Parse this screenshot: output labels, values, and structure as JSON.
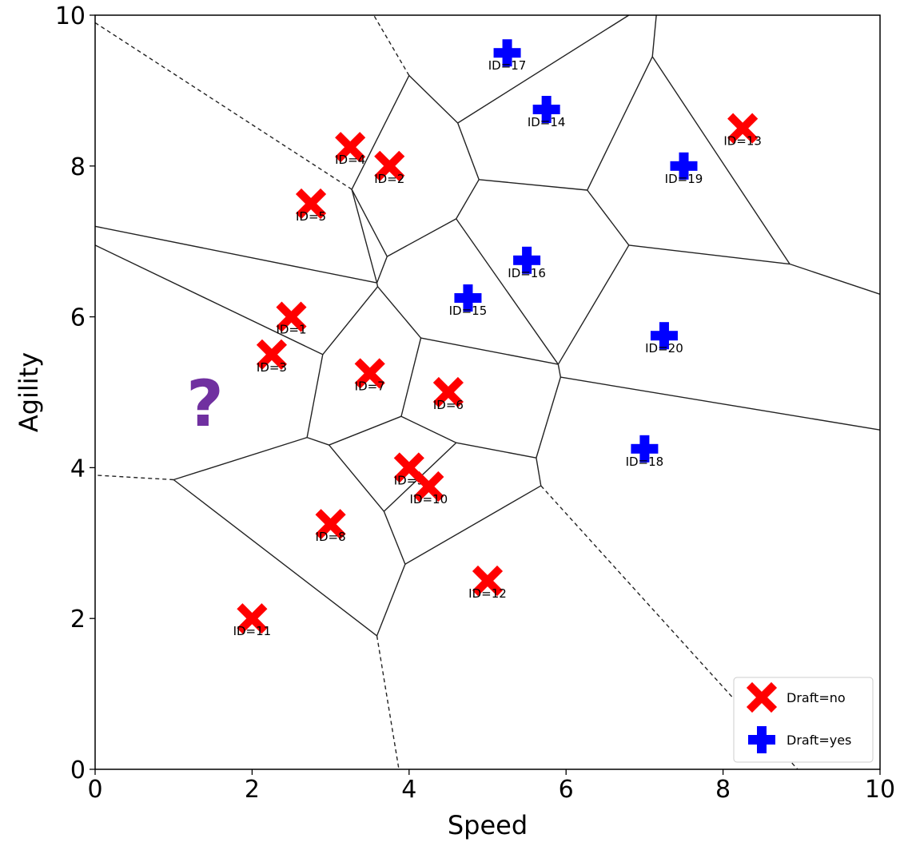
{
  "chart_data": {
    "type": "scatter",
    "xlabel": "Speed",
    "ylabel": "Agility",
    "xlim": [
      0,
      10
    ],
    "ylim": [
      0,
      10
    ],
    "xticks": [
      "0",
      "2",
      "4",
      "6",
      "8",
      "10"
    ],
    "yticks": [
      "0",
      "2",
      "4",
      "6",
      "8",
      "10"
    ],
    "grid": false,
    "legend_position": "bottom-right",
    "query_point": {
      "label": "?",
      "x": 1.4,
      "y": 4.85,
      "color": "#7030A0"
    },
    "series": [
      {
        "name": "Draft=no",
        "marker": "x",
        "color": "#FF0000",
        "points": [
          {
            "id": "ID=1",
            "x": 2.5,
            "y": 6.0
          },
          {
            "id": "ID=2",
            "x": 3.75,
            "y": 8.0
          },
          {
            "id": "ID=3",
            "x": 2.25,
            "y": 5.5
          },
          {
            "id": "ID=4",
            "x": 3.25,
            "y": 8.25
          },
          {
            "id": "ID=5",
            "x": 2.75,
            "y": 7.5
          },
          {
            "id": "ID=6",
            "x": 4.5,
            "y": 5.0
          },
          {
            "id": "ID=7",
            "x": 3.5,
            "y": 5.25
          },
          {
            "id": "ID=8",
            "x": 3.0,
            "y": 3.25
          },
          {
            "id": "ID=9",
            "x": 4.0,
            "y": 4.0
          },
          {
            "id": "ID=10",
            "x": 4.25,
            "y": 3.75
          },
          {
            "id": "ID=11",
            "x": 2.0,
            "y": 2.0
          },
          {
            "id": "ID=12",
            "x": 5.0,
            "y": 2.5
          },
          {
            "id": "ID=13",
            "x": 8.25,
            "y": 8.5
          }
        ]
      },
      {
        "name": "Draft=yes",
        "marker": "plus",
        "color": "#0000FF",
        "points": [
          {
            "id": "ID=14",
            "x": 5.75,
            "y": 8.75
          },
          {
            "id": "ID=15",
            "x": 4.75,
            "y": 6.25
          },
          {
            "id": "ID=16",
            "x": 5.5,
            "y": 6.75
          },
          {
            "id": "ID=17",
            "x": 5.25,
            "y": 9.5
          },
          {
            "id": "ID=18",
            "x": 7.0,
            "y": 4.25
          },
          {
            "id": "ID=19",
            "x": 7.5,
            "y": 8.0
          },
          {
            "id": "ID=20",
            "x": 7.25,
            "y": 5.75
          }
        ]
      }
    ],
    "voronoi_edges": [
      {
        "p": [
          [
            3.27,
            7.69
          ],
          [
            3.59,
            6.45
          ]
        ],
        "dashed": false
      },
      {
        "p": [
          [
            3.27,
            7.69
          ],
          [
            4.0,
            9.2
          ]
        ],
        "dashed": false
      },
      {
        "p": [
          [
            3.27,
            7.69
          ],
          [
            0.0,
            9.9
          ]
        ],
        "dashed": true
      },
      {
        "p": [
          [
            4.0,
            9.2
          ],
          [
            3.55,
            10.0
          ]
        ],
        "dashed": true
      },
      {
        "p": [
          [
            4.0,
            9.2
          ],
          [
            4.62,
            8.57
          ]
        ],
        "dashed": false
      },
      {
        "p": [
          [
            4.62,
            8.57
          ],
          [
            4.89,
            7.82
          ]
        ],
        "dashed": false
      },
      {
        "p": [
          [
            4.62,
            8.57
          ],
          [
            6.8,
            10.0
          ]
        ],
        "dashed": false
      },
      {
        "p": [
          [
            4.89,
            7.82
          ],
          [
            6.27,
            7.68
          ]
        ],
        "dashed": false
      },
      {
        "p": [
          [
            4.89,
            7.82
          ],
          [
            4.6,
            7.3
          ]
        ],
        "dashed": false
      },
      {
        "p": [
          [
            6.27,
            7.68
          ],
          [
            7.1,
            9.45
          ]
        ],
        "dashed": false
      },
      {
        "p": [
          [
            6.27,
            7.68
          ],
          [
            6.8,
            6.95
          ]
        ],
        "dashed": false
      },
      {
        "p": [
          [
            7.1,
            9.45
          ],
          [
            7.15,
            10.0
          ]
        ],
        "dashed": false
      },
      {
        "p": [
          [
            7.1,
            9.45
          ],
          [
            8.85,
            6.7
          ]
        ],
        "dashed": false
      },
      {
        "p": [
          [
            8.85,
            6.7
          ],
          [
            10.0,
            6.3
          ]
        ],
        "dashed": false
      },
      {
        "p": [
          [
            8.85,
            6.7
          ],
          [
            6.8,
            6.95
          ]
        ],
        "dashed": false
      },
      {
        "p": [
          [
            6.8,
            6.95
          ],
          [
            5.9,
            5.37
          ]
        ],
        "dashed": false
      },
      {
        "p": [
          [
            5.9,
            5.37
          ],
          [
            4.6,
            7.3
          ]
        ],
        "dashed": false
      },
      {
        "p": [
          [
            4.6,
            7.3
          ],
          [
            3.72,
            6.8
          ]
        ],
        "dashed": false
      },
      {
        "p": [
          [
            3.72,
            6.8
          ],
          [
            3.59,
            6.45
          ]
        ],
        "dashed": false
      },
      {
        "p": [
          [
            3.72,
            6.8
          ],
          [
            3.27,
            7.69
          ]
        ],
        "dashed": false
      },
      {
        "p": [
          [
            3.59,
            6.45
          ],
          [
            0.0,
            7.2
          ]
        ],
        "dashed": false
      },
      {
        "p": [
          [
            3.59,
            6.45
          ],
          [
            3.6,
            6.4
          ]
        ],
        "dashed": false
      },
      {
        "p": [
          [
            3.6,
            6.4
          ],
          [
            2.9,
            5.5
          ]
        ],
        "dashed": false
      },
      {
        "p": [
          [
            3.6,
            6.4
          ],
          [
            4.15,
            5.72
          ]
        ],
        "dashed": false
      },
      {
        "p": [
          [
            2.9,
            5.5
          ],
          [
            0.0,
            6.95
          ]
        ],
        "dashed": false
      },
      {
        "p": [
          [
            2.9,
            5.5
          ],
          [
            2.7,
            4.4
          ]
        ],
        "dashed": false
      },
      {
        "p": [
          [
            4.15,
            5.72
          ],
          [
            5.9,
            5.37
          ]
        ],
        "dashed": false
      },
      {
        "p": [
          [
            4.15,
            5.72
          ],
          [
            3.9,
            4.68
          ]
        ],
        "dashed": false
      },
      {
        "p": [
          [
            5.9,
            5.37
          ],
          [
            5.93,
            5.2
          ]
        ],
        "dashed": false
      },
      {
        "p": [
          [
            5.93,
            5.2
          ],
          [
            10.0,
            4.5
          ]
        ],
        "dashed": false
      },
      {
        "p": [
          [
            5.93,
            5.2
          ],
          [
            5.62,
            4.13
          ]
        ],
        "dashed": false
      },
      {
        "p": [
          [
            3.9,
            4.68
          ],
          [
            2.98,
            4.3
          ]
        ],
        "dashed": false
      },
      {
        "p": [
          [
            3.9,
            4.68
          ],
          [
            4.6,
            4.33
          ]
        ],
        "dashed": false
      },
      {
        "p": [
          [
            4.6,
            4.33
          ],
          [
            5.62,
            4.13
          ]
        ],
        "dashed": false
      },
      {
        "p": [
          [
            4.6,
            4.33
          ],
          [
            3.68,
            3.42
          ]
        ],
        "dashed": false
      },
      {
        "p": [
          [
            2.7,
            4.4
          ],
          [
            2.98,
            4.3
          ]
        ],
        "dashed": false
      },
      {
        "p": [
          [
            2.7,
            4.4
          ],
          [
            1.0,
            3.84
          ]
        ],
        "dashed": false
      },
      {
        "p": [
          [
            2.98,
            4.3
          ],
          [
            3.68,
            3.42
          ]
        ],
        "dashed": false
      },
      {
        "p": [
          [
            3.68,
            3.42
          ],
          [
            3.95,
            2.72
          ]
        ],
        "dashed": false
      },
      {
        "p": [
          [
            5.62,
            4.13
          ],
          [
            5.68,
            3.76
          ]
        ],
        "dashed": false
      },
      {
        "p": [
          [
            5.68,
            3.76
          ],
          [
            3.95,
            2.72
          ]
        ],
        "dashed": false
      },
      {
        "p": [
          [
            5.68,
            3.76
          ],
          [
            8.95,
            0.0
          ]
        ],
        "dashed": true
      },
      {
        "p": [
          [
            3.95,
            2.72
          ],
          [
            3.59,
            1.77
          ]
        ],
        "dashed": false
      },
      {
        "p": [
          [
            3.59,
            1.77
          ],
          [
            1.0,
            3.84
          ]
        ],
        "dashed": false
      },
      {
        "p": [
          [
            3.59,
            1.77
          ],
          [
            3.87,
            0.0
          ]
        ],
        "dashed": true
      },
      {
        "p": [
          [
            1.0,
            3.84
          ],
          [
            0.0,
            3.9
          ]
        ],
        "dashed": true
      }
    ]
  }
}
